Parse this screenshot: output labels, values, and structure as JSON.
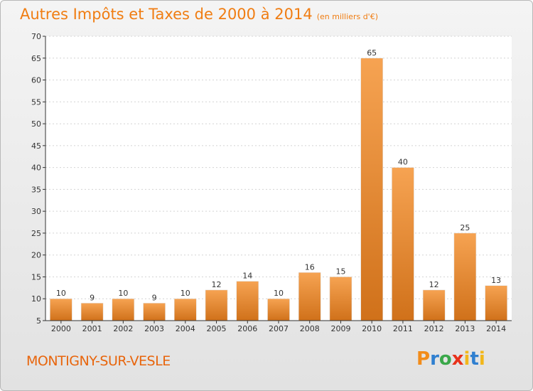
{
  "header": {
    "title": "Autres Impôts et Taxes de 2000 à 2014",
    "unit": "(en milliers d'€)"
  },
  "footer": {
    "commune": "MONTIGNY-SUR-VESLE",
    "logo_letters": [
      "P",
      "r",
      "o",
      "x",
      "i",
      "t",
      "i"
    ]
  },
  "colors": {
    "accent": "#f07d12",
    "bar_light": "#f6a352",
    "bar_dark": "#d0711a"
  },
  "chart_data": {
    "type": "bar",
    "categories": [
      "2000",
      "2001",
      "2002",
      "2003",
      "2004",
      "2005",
      "2006",
      "2007",
      "2008",
      "2009",
      "2010",
      "2011",
      "2012",
      "2013",
      "2014"
    ],
    "values": [
      10,
      9,
      10,
      9,
      10,
      12,
      14,
      10,
      16,
      15,
      65,
      40,
      12,
      25,
      13
    ],
    "title": "Autres Impôts et Taxes de 2000 à 2014",
    "xlabel": "",
    "ylabel": "",
    "ylim": [
      5,
      70
    ],
    "yticks": [
      5,
      10,
      15,
      20,
      25,
      30,
      35,
      40,
      45,
      50,
      55,
      60,
      65,
      70
    ],
    "grid": true,
    "data_labels": true
  }
}
